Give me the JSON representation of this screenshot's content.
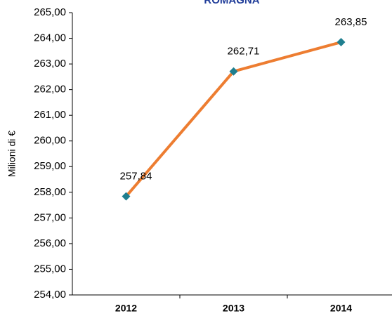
{
  "chart_data": {
    "type": "line",
    "title": "ROMAGNA",
    "y_label": "Milioni di €",
    "categories": [
      "2012",
      "2013",
      "2014"
    ],
    "series": [
      {
        "name": "Romagna",
        "color": "#ed7d31",
        "marker_color": "#1f7f8f",
        "values": [
          257.84,
          262.71,
          263.85
        ],
        "value_labels": [
          "257,84",
          "262,71",
          "263,85"
        ]
      }
    ],
    "ylim": [
      254,
      265
    ],
    "yticks": [
      {
        "value": 254,
        "label": "254,00"
      },
      {
        "value": 255,
        "label": "255,00"
      },
      {
        "value": 256,
        "label": "256,00"
      },
      {
        "value": 257,
        "label": "257,00"
      },
      {
        "value": 258,
        "label": "258,00"
      },
      {
        "value": 259,
        "label": "259,00"
      },
      {
        "value": 260,
        "label": "260,00"
      },
      {
        "value": 261,
        "label": "261,00"
      },
      {
        "value": 262,
        "label": "262,00"
      },
      {
        "value": 263,
        "label": "263,00"
      },
      {
        "value": 264,
        "label": "264,00"
      },
      {
        "value": 265,
        "label": "265,00"
      }
    ]
  }
}
